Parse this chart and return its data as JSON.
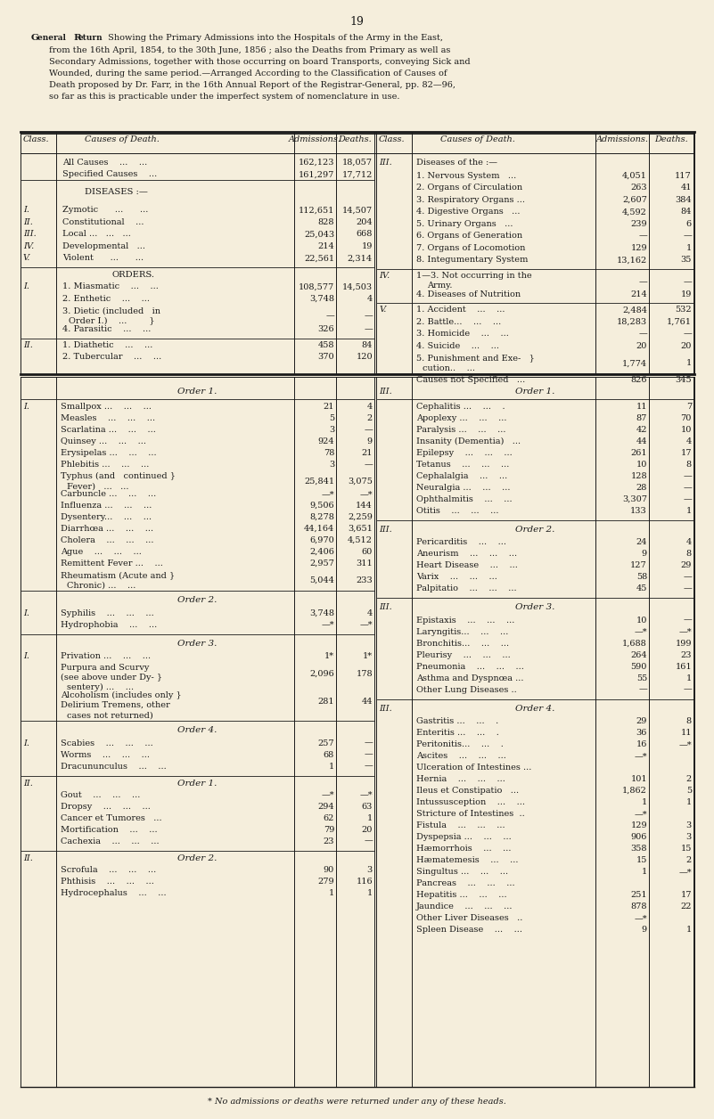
{
  "page_number": "19",
  "bg_color": "#f5eedc",
  "title_line1_bold": "General Return",
  "title_line1_rest": " Showing the Primary Admissions into the Hospitals of the Army in the East,",
  "title_lines": [
    "from the 16th April, 1854, to the 30th June, 1856 ; also the Deaths from Primary as well as",
    "Secondary Admissions, together with those occurring on board Transports, conveying Sick and",
    "Wounded, during the same period.—Arranged According to the Classification of Causes of",
    "Death proposed by Dr. Farr, in the 16th Annual Report of the Registrar-General, pp. 82—96,",
    "so far as this is practicable under the imperfect system of nomenclature in use."
  ],
  "footnote": "* No admissions or deaths were returned under any of these heads."
}
